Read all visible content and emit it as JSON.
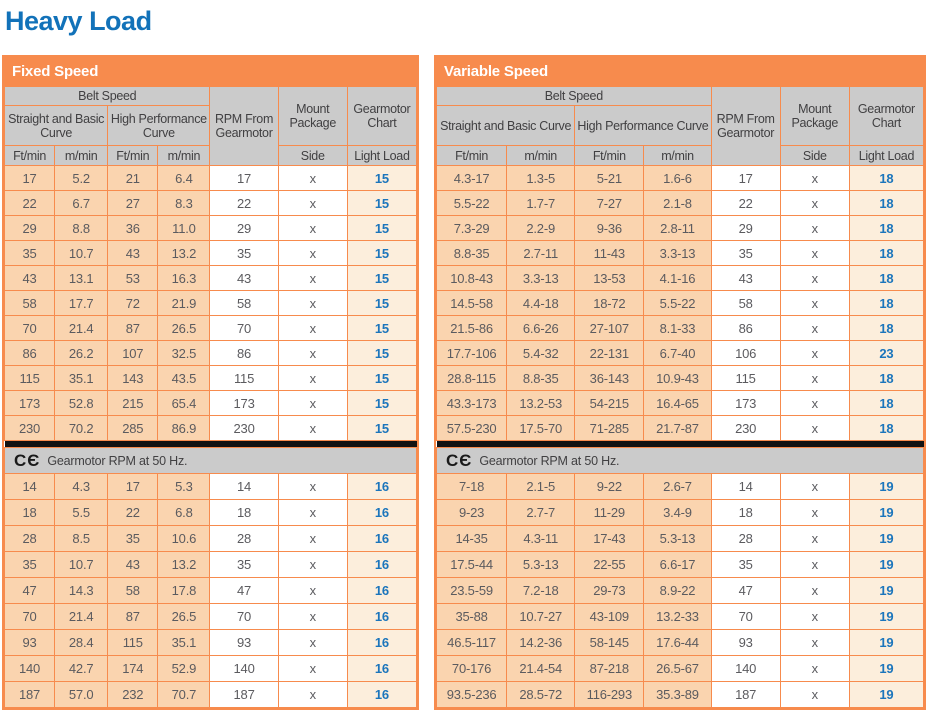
{
  "page_title": "Heavy Load",
  "colors": {
    "accent_orange": "#F78B4D",
    "cell_peach": "#FAD4AF",
    "cell_light_peach": "#FCEEDC",
    "header_gray": "#CBCBCB",
    "chart_blue": "#1B75BC",
    "title_blue": "#1272B9",
    "data_text": "#5B5B5F",
    "divider_black": "#121212"
  },
  "tables": [
    {
      "title": "Fixed Speed",
      "columns": {
        "belt_speed": "Belt Speed",
        "straight_basic": "Straight and Basic Curve",
        "high_performance": "High Performance Curve",
        "rpm_from_gearmotor": "RPM From Gearmotor",
        "mount_package": "Mount Package",
        "gearmotor_chart": "Gearmotor Chart",
        "ft_min_1": "Ft/min",
        "m_min_1": "m/min",
        "ft_min_2": "Ft/min",
        "m_min_2": "m/min",
        "side": "Side",
        "light_load": "Light Load"
      },
      "ce_mark": "CЄ",
      "ce_note": "Gearmotor RPM at 50 Hz.",
      "rows_60hz": [
        [
          "17",
          "5.2",
          "21",
          "6.4",
          "17",
          "x",
          "15"
        ],
        [
          "22",
          "6.7",
          "27",
          "8.3",
          "22",
          "x",
          "15"
        ],
        [
          "29",
          "8.8",
          "36",
          "11.0",
          "29",
          "x",
          "15"
        ],
        [
          "35",
          "10.7",
          "43",
          "13.2",
          "35",
          "x",
          "15"
        ],
        [
          "43",
          "13.1",
          "53",
          "16.3",
          "43",
          "x",
          "15"
        ],
        [
          "58",
          "17.7",
          "72",
          "21.9",
          "58",
          "x",
          "15"
        ],
        [
          "70",
          "21.4",
          "87",
          "26.5",
          "70",
          "x",
          "15"
        ],
        [
          "86",
          "26.2",
          "107",
          "32.5",
          "86",
          "x",
          "15"
        ],
        [
          "115",
          "35.1",
          "143",
          "43.5",
          "115",
          "x",
          "15"
        ],
        [
          "173",
          "52.8",
          "215",
          "65.4",
          "173",
          "x",
          "15"
        ],
        [
          "230",
          "70.2",
          "285",
          "86.9",
          "230",
          "x",
          "15"
        ]
      ],
      "rows_50hz": [
        [
          "14",
          "4.3",
          "17",
          "5.3",
          "14",
          "x",
          "16"
        ],
        [
          "18",
          "5.5",
          "22",
          "6.8",
          "18",
          "x",
          "16"
        ],
        [
          "28",
          "8.5",
          "35",
          "10.6",
          "28",
          "x",
          "16"
        ],
        [
          "35",
          "10.7",
          "43",
          "13.2",
          "35",
          "x",
          "16"
        ],
        [
          "47",
          "14.3",
          "58",
          "17.8",
          "47",
          "x",
          "16"
        ],
        [
          "70",
          "21.4",
          "87",
          "26.5",
          "70",
          "x",
          "16"
        ],
        [
          "93",
          "28.4",
          "115",
          "35.1",
          "93",
          "x",
          "16"
        ],
        [
          "140",
          "42.7",
          "174",
          "52.9",
          "140",
          "x",
          "16"
        ],
        [
          "187",
          "57.0",
          "232",
          "70.7",
          "187",
          "x",
          "16"
        ]
      ]
    },
    {
      "title": "Variable Speed",
      "columns": {
        "belt_speed": "Belt Speed",
        "straight_basic": "Straight and Basic Curve",
        "high_performance": "High Performance Curve",
        "rpm_from_gearmotor": "RPM From Gearmotor",
        "mount_package": "Mount Package",
        "gearmotor_chart": "Gearmotor Chart",
        "ft_min_1": "Ft/min",
        "m_min_1": "m/min",
        "ft_min_2": "Ft/min",
        "m_min_2": "m/min",
        "side": "Side",
        "light_load": "Light Load"
      },
      "ce_mark": "CЄ",
      "ce_note": "Gearmotor RPM at 50 Hz.",
      "rows_60hz": [
        [
          "4.3-17",
          "1.3-5",
          "5-21",
          "1.6-6",
          "17",
          "x",
          "18"
        ],
        [
          "5.5-22",
          "1.7-7",
          "7-27",
          "2.1-8",
          "22",
          "x",
          "18"
        ],
        [
          "7.3-29",
          "2.2-9",
          "9-36",
          "2.8-11",
          "29",
          "x",
          "18"
        ],
        [
          "8.8-35",
          "2.7-11",
          "11-43",
          "3.3-13",
          "35",
          "x",
          "18"
        ],
        [
          "10.8-43",
          "3.3-13",
          "13-53",
          "4.1-16",
          "43",
          "x",
          "18"
        ],
        [
          "14.5-58",
          "4.4-18",
          "18-72",
          "5.5-22",
          "58",
          "x",
          "18"
        ],
        [
          "21.5-86",
          "6.6-26",
          "27-107",
          "8.1-33",
          "86",
          "x",
          "18"
        ],
        [
          "17.7-106",
          "5.4-32",
          "22-131",
          "6.7-40",
          "106",
          "x",
          "23"
        ],
        [
          "28.8-115",
          "8.8-35",
          "36-143",
          "10.9-43",
          "115",
          "x",
          "18"
        ],
        [
          "43.3-173",
          "13.2-53",
          "54-215",
          "16.4-65",
          "173",
          "x",
          "18"
        ],
        [
          "57.5-230",
          "17.5-70",
          "71-285",
          "21.7-87",
          "230",
          "x",
          "18"
        ]
      ],
      "rows_50hz": [
        [
          "7-18",
          "2.1-5",
          "9-22",
          "2.6-7",
          "14",
          "x",
          "19"
        ],
        [
          "9-23",
          "2.7-7",
          "11-29",
          "3.4-9",
          "18",
          "x",
          "19"
        ],
        [
          "14-35",
          "4.3-11",
          "17-43",
          "5.3-13",
          "28",
          "x",
          "19"
        ],
        [
          "17.5-44",
          "5.3-13",
          "22-55",
          "6.6-17",
          "35",
          "x",
          "19"
        ],
        [
          "23.5-59",
          "7.2-18",
          "29-73",
          "8.9-22",
          "47",
          "x",
          "19"
        ],
        [
          "35-88",
          "10.7-27",
          "43-109",
          "13.2-33",
          "70",
          "x",
          "19"
        ],
        [
          "46.5-117",
          "14.2-36",
          "58-145",
          "17.6-44",
          "93",
          "x",
          "19"
        ],
        [
          "70-176",
          "21.4-54",
          "87-218",
          "26.5-67",
          "140",
          "x",
          "19"
        ],
        [
          "93.5-236",
          "28.5-72",
          "116-293",
          "35.3-89",
          "187",
          "x",
          "19"
        ]
      ]
    }
  ]
}
